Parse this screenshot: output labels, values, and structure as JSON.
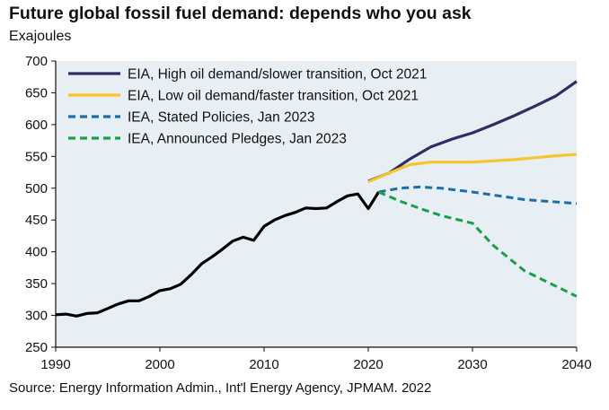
{
  "title": "Future global fossil fuel demand: depends who you ask",
  "unit_label": "Exajoules",
  "source": "Source: Energy Information Admin., Int'l Energy Agency, JPMAM. 2022",
  "colors": {
    "plot_background": "#e8eff4",
    "history": "#000000",
    "eia_high": "#2e2e63",
    "eia_low": "#f7c42a",
    "iea_stated": "#1c6fa4",
    "iea_pledges": "#1a9e4a"
  },
  "chart_data": {
    "type": "line",
    "title": "Future global fossil fuel demand: depends who you ask",
    "xlabel": "",
    "ylabel": "Exajoules",
    "xlim": [
      1990,
      2040
    ],
    "ylim": [
      250,
      700
    ],
    "x_ticks": [
      1990,
      2000,
      2010,
      2020,
      2030,
      2040
    ],
    "y_ticks": [
      250,
      300,
      350,
      400,
      450,
      500,
      550,
      600,
      650,
      700
    ],
    "grid": false,
    "legend_position": "top-left",
    "series": [
      {
        "key": "history",
        "name": "",
        "style": "solid",
        "color": "#000000",
        "x": [
          1990,
          1991,
          1992,
          1993,
          1994,
          1995,
          1996,
          1997,
          1998,
          1999,
          2000,
          2001,
          2002,
          2003,
          2004,
          2005,
          2006,
          2007,
          2008,
          2009,
          2010,
          2011,
          2012,
          2013,
          2014,
          2015,
          2016,
          2017,
          2018,
          2019,
          2020,
          2021
        ],
        "y": [
          301,
          302,
          299,
          303,
          304,
          311,
          318,
          323,
          323,
          330,
          339,
          342,
          349,
          364,
          381,
          392,
          404,
          417,
          423,
          418,
          440,
          450,
          457,
          462,
          469,
          468,
          469,
          479,
          488,
          491,
          468,
          494
        ]
      },
      {
        "key": "eia_high",
        "name": "EIA, High oil demand/slower transition, Oct 2021",
        "style": "solid",
        "color": "#2e2e63",
        "x": [
          2020,
          2022,
          2024,
          2026,
          2028,
          2030,
          2032,
          2034,
          2036,
          2038,
          2040
        ],
        "y": [
          511,
          524,
          546,
          565,
          577,
          587,
          600,
          614,
          629,
          645,
          668
        ]
      },
      {
        "key": "eia_low",
        "name": "EIA, Low oil demand/faster transition, Oct 2021",
        "style": "solid",
        "color": "#f7c42a",
        "x": [
          2020,
          2022,
          2024,
          2026,
          2028,
          2030,
          2032,
          2034,
          2036,
          2038,
          2040
        ],
        "y": [
          510,
          524,
          537,
          541,
          541,
          541,
          543,
          545,
          548,
          551,
          553
        ]
      },
      {
        "key": "iea_stated",
        "name": "IEA, Stated Policies, Jan 2023",
        "style": "dashed",
        "color": "#1c6fa4",
        "x": [
          2021,
          2023,
          2025,
          2027,
          2030,
          2035,
          2040
        ],
        "y": [
          494,
          500,
          502,
          500,
          494,
          482,
          476
        ]
      },
      {
        "key": "iea_pledges",
        "name": "IEA, Announced Pledges, Jan 2023",
        "style": "dashed",
        "color": "#1a9e4a",
        "x": [
          2021,
          2023,
          2025,
          2027,
          2030,
          2032,
          2035,
          2040
        ],
        "y": [
          494,
          480,
          468,
          457,
          445,
          410,
          370,
          330
        ]
      }
    ]
  }
}
